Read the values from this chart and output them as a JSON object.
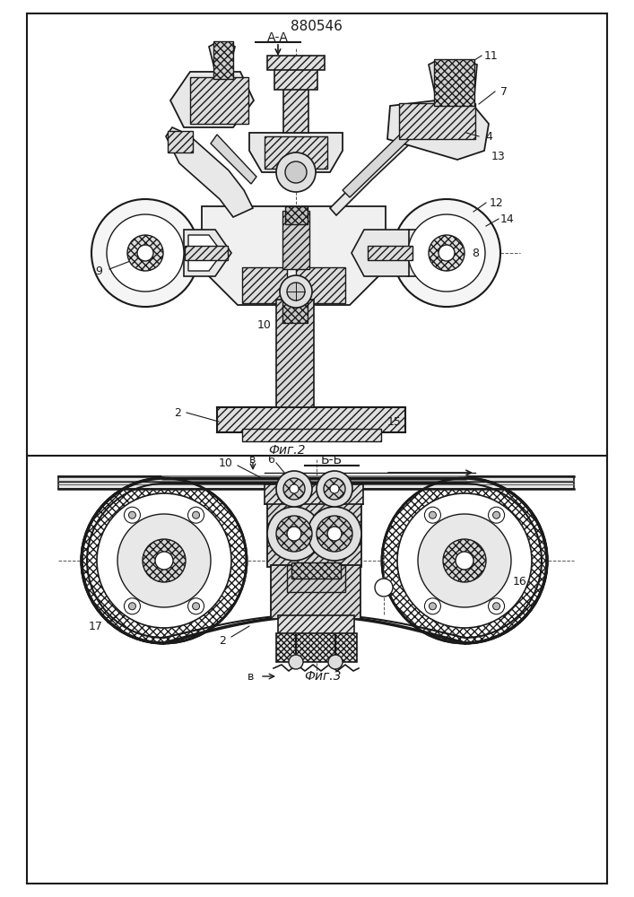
{
  "title": "880546",
  "fig2_caption": "Фиг.2",
  "fig3_caption": "Фиг.3",
  "fig2_label": "А-А",
  "fig3_label": "Б-Б",
  "bg_color": "#ffffff",
  "line_color": "#1a1a1a"
}
